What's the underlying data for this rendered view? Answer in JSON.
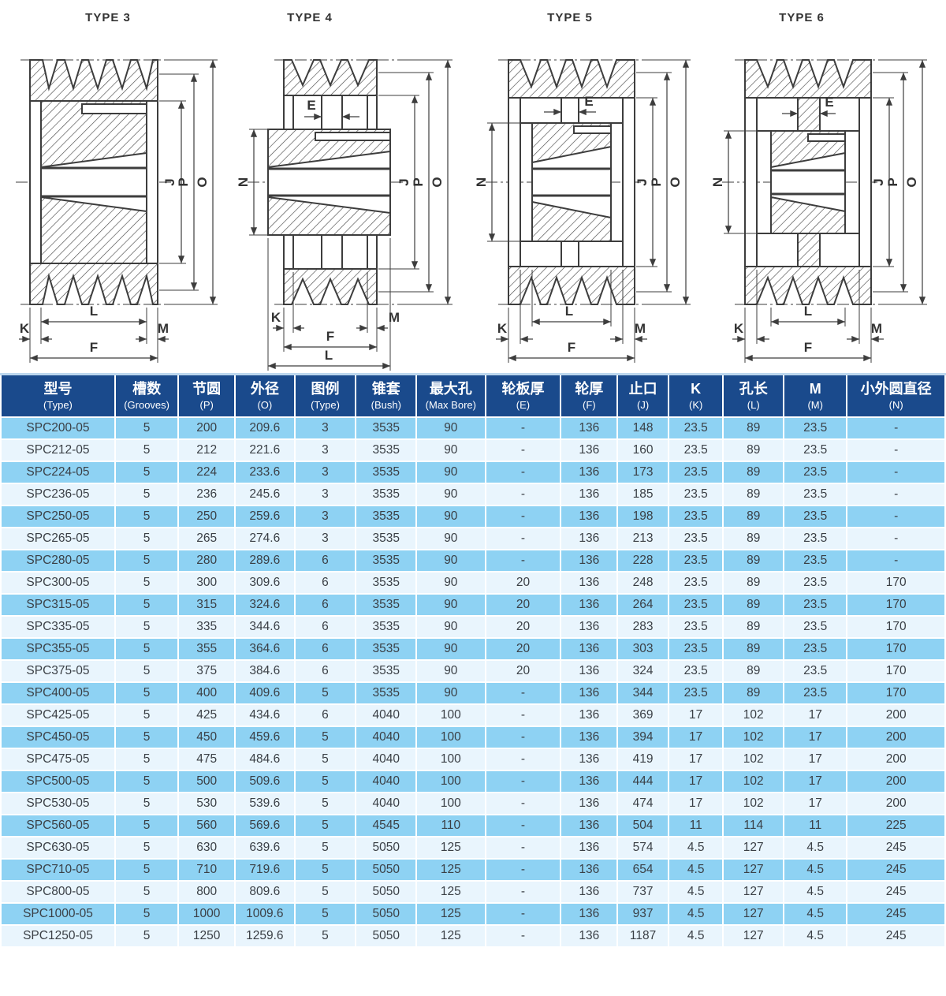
{
  "colors": {
    "header_bg": "#1a4a8c",
    "header_text": "#ffffff",
    "row_odd": "#8ed2f3",
    "row_even": "#e9f5fd",
    "cell_text": "#3a3f45",
    "drawing_line": "#3d3d3d",
    "table_top_strip": "#bcd7ee"
  },
  "diagrams": [
    {
      "title": "TYPE 3",
      "labels": {
        "J": "J",
        "P": "P",
        "O": "O",
        "L": "L",
        "K": "K",
        "M": "M",
        "F": "F"
      }
    },
    {
      "title": "TYPE 4",
      "labels": {
        "E": "E",
        "N": "N",
        "J": "J",
        "P": "P",
        "O": "O",
        "K": "K",
        "M": "M",
        "F": "F",
        "L": "L"
      }
    },
    {
      "title": "TYPE 5",
      "labels": {
        "E": "E",
        "N": "N",
        "J": "J",
        "P": "P",
        "O": "O",
        "L": "L",
        "K": "K",
        "M": "M",
        "F": "F"
      }
    },
    {
      "title": "TYPE 6",
      "labels": {
        "E": "E",
        "N": "N",
        "J": "J",
        "P": "P",
        "O": "O",
        "L": "L",
        "K": "K",
        "M": "M",
        "F": "F"
      }
    }
  ],
  "table": {
    "headers": [
      {
        "key": "type",
        "zh": "型号",
        "en": "(Type)"
      },
      {
        "key": "grooves",
        "zh": "槽数",
        "en": "(Grooves)"
      },
      {
        "key": "pitch",
        "zh": "节圆",
        "en": "(P)"
      },
      {
        "key": "od",
        "zh": "外径",
        "en": "(O)"
      },
      {
        "key": "figure",
        "zh": "图例",
        "en": "(Type)"
      },
      {
        "key": "bush",
        "zh": "锥套",
        "en": "(Bush)"
      },
      {
        "key": "max-bore",
        "zh": "最大孔",
        "en": "(Max Bore)"
      },
      {
        "key": "e",
        "zh": "轮板厚",
        "en": "(E)"
      },
      {
        "key": "f",
        "zh": "轮厚",
        "en": "(F)"
      },
      {
        "key": "j",
        "zh": "止口",
        "en": "(J)"
      },
      {
        "key": "k",
        "zh": "K",
        "en": "(K)"
      },
      {
        "key": "l",
        "zh": "孔长",
        "en": "(L)"
      },
      {
        "key": "m",
        "zh": "M",
        "en": "(M)"
      },
      {
        "key": "n",
        "zh": "小外圆直径",
        "en": "(N)"
      }
    ],
    "rows": [
      [
        "SPC200-05",
        "5",
        "200",
        "209.6",
        "3",
        "3535",
        "90",
        "-",
        "136",
        "148",
        "23.5",
        "89",
        "23.5",
        "-"
      ],
      [
        "SPC212-05",
        "5",
        "212",
        "221.6",
        "3",
        "3535",
        "90",
        "-",
        "136",
        "160",
        "23.5",
        "89",
        "23.5",
        "-"
      ],
      [
        "SPC224-05",
        "5",
        "224",
        "233.6",
        "3",
        "3535",
        "90",
        "-",
        "136",
        "173",
        "23.5",
        "89",
        "23.5",
        "-"
      ],
      [
        "SPC236-05",
        "5",
        "236",
        "245.6",
        "3",
        "3535",
        "90",
        "-",
        "136",
        "185",
        "23.5",
        "89",
        "23.5",
        "-"
      ],
      [
        "SPC250-05",
        "5",
        "250",
        "259.6",
        "3",
        "3535",
        "90",
        "-",
        "136",
        "198",
        "23.5",
        "89",
        "23.5",
        "-"
      ],
      [
        "SPC265-05",
        "5",
        "265",
        "274.6",
        "3",
        "3535",
        "90",
        "-",
        "136",
        "213",
        "23.5",
        "89",
        "23.5",
        "-"
      ],
      [
        "SPC280-05",
        "5",
        "280",
        "289.6",
        "6",
        "3535",
        "90",
        "-",
        "136",
        "228",
        "23.5",
        "89",
        "23.5",
        "-"
      ],
      [
        "SPC300-05",
        "5",
        "300",
        "309.6",
        "6",
        "3535",
        "90",
        "20",
        "136",
        "248",
        "23.5",
        "89",
        "23.5",
        "170"
      ],
      [
        "SPC315-05",
        "5",
        "315",
        "324.6",
        "6",
        "3535",
        "90",
        "20",
        "136",
        "264",
        "23.5",
        "89",
        "23.5",
        "170"
      ],
      [
        "SPC335-05",
        "5",
        "335",
        "344.6",
        "6",
        "3535",
        "90",
        "20",
        "136",
        "283",
        "23.5",
        "89",
        "23.5",
        "170"
      ],
      [
        "SPC355-05",
        "5",
        "355",
        "364.6",
        "6",
        "3535",
        "90",
        "20",
        "136",
        "303",
        "23.5",
        "89",
        "23.5",
        "170"
      ],
      [
        "SPC375-05",
        "5",
        "375",
        "384.6",
        "6",
        "3535",
        "90",
        "20",
        "136",
        "324",
        "23.5",
        "89",
        "23.5",
        "170"
      ],
      [
        "SPC400-05",
        "5",
        "400",
        "409.6",
        "5",
        "3535",
        "90",
        "-",
        "136",
        "344",
        "23.5",
        "89",
        "23.5",
        "170"
      ],
      [
        "SPC425-05",
        "5",
        "425",
        "434.6",
        "6",
        "4040",
        "100",
        "-",
        "136",
        "369",
        "17",
        "102",
        "17",
        "200"
      ],
      [
        "SPC450-05",
        "5",
        "450",
        "459.6",
        "5",
        "4040",
        "100",
        "-",
        "136",
        "394",
        "17",
        "102",
        "17",
        "200"
      ],
      [
        "SPC475-05",
        "5",
        "475",
        "484.6",
        "5",
        "4040",
        "100",
        "-",
        "136",
        "419",
        "17",
        "102",
        "17",
        "200"
      ],
      [
        "SPC500-05",
        "5",
        "500",
        "509.6",
        "5",
        "4040",
        "100",
        "-",
        "136",
        "444",
        "17",
        "102",
        "17",
        "200"
      ],
      [
        "SPC530-05",
        "5",
        "530",
        "539.6",
        "5",
        "4040",
        "100",
        "-",
        "136",
        "474",
        "17",
        "102",
        "17",
        "200"
      ],
      [
        "SPC560-05",
        "5",
        "560",
        "569.6",
        "5",
        "4545",
        "110",
        "-",
        "136",
        "504",
        "11",
        "114",
        "11",
        "225"
      ],
      [
        "SPC630-05",
        "5",
        "630",
        "639.6",
        "5",
        "5050",
        "125",
        "-",
        "136",
        "574",
        "4.5",
        "127",
        "4.5",
        "245"
      ],
      [
        "SPC710-05",
        "5",
        "710",
        "719.6",
        "5",
        "5050",
        "125",
        "-",
        "136",
        "654",
        "4.5",
        "127",
        "4.5",
        "245"
      ],
      [
        "SPC800-05",
        "5",
        "800",
        "809.6",
        "5",
        "5050",
        "125",
        "-",
        "136",
        "737",
        "4.5",
        "127",
        "4.5",
        "245"
      ],
      [
        "SPC1000-05",
        "5",
        "1000",
        "1009.6",
        "5",
        "5050",
        "125",
        "-",
        "136",
        "937",
        "4.5",
        "127",
        "4.5",
        "245"
      ],
      [
        "SPC1250-05",
        "5",
        "1250",
        "1259.6",
        "5",
        "5050",
        "125",
        "-",
        "136",
        "1187",
        "4.5",
        "127",
        "4.5",
        "245"
      ]
    ]
  }
}
